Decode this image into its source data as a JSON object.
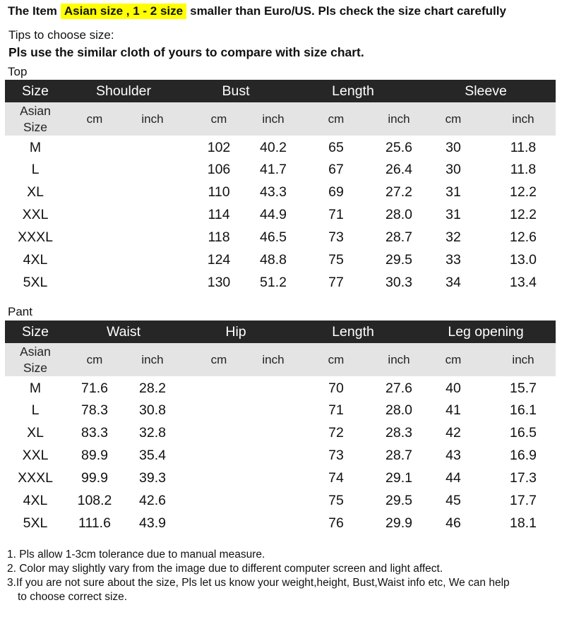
{
  "header": {
    "prefix": "The Item",
    "highlight": "Asian size , 1 - 2 size",
    "suffix": "smaller than Euro/US. Pls check the size chart carefully"
  },
  "tips": {
    "label": "Tips to choose size:",
    "text": "Pls use the similar cloth of yours to compare with size chart."
  },
  "top": {
    "label": "Top",
    "size_header": "Size",
    "groups": [
      "Shoulder",
      "Bust",
      "Length",
      "Sleeve"
    ],
    "asian_size": [
      "Asian",
      "Size"
    ],
    "unit_cm": "cm",
    "unit_inch": "inch",
    "rows": [
      {
        "size": "M",
        "shoulder_cm": "",
        "shoulder_inch": "",
        "bust_cm": "102",
        "bust_inch": "40.2",
        "length_cm": "65",
        "length_inch": "25.6",
        "sleeve_cm": "30",
        "sleeve_inch": "11.8"
      },
      {
        "size": "L",
        "shoulder_cm": "",
        "shoulder_inch": "",
        "bust_cm": "106",
        "bust_inch": "41.7",
        "length_cm": "67",
        "length_inch": "26.4",
        "sleeve_cm": "30",
        "sleeve_inch": "11.8"
      },
      {
        "size": "XL",
        "shoulder_cm": "",
        "shoulder_inch": "",
        "bust_cm": "110",
        "bust_inch": "43.3",
        "length_cm": "69",
        "length_inch": "27.2",
        "sleeve_cm": "31",
        "sleeve_inch": "12.2"
      },
      {
        "size": "XXL",
        "shoulder_cm": "",
        "shoulder_inch": "",
        "bust_cm": "114",
        "bust_inch": "44.9",
        "length_cm": "71",
        "length_inch": "28.0",
        "sleeve_cm": "31",
        "sleeve_inch": "12.2"
      },
      {
        "size": "XXXL",
        "shoulder_cm": "",
        "shoulder_inch": "",
        "bust_cm": "118",
        "bust_inch": "46.5",
        "length_cm": "73",
        "length_inch": "28.7",
        "sleeve_cm": "32",
        "sleeve_inch": "12.6"
      },
      {
        "size": "4XL",
        "shoulder_cm": "",
        "shoulder_inch": "",
        "bust_cm": "124",
        "bust_inch": "48.8",
        "length_cm": "75",
        "length_inch": "29.5",
        "sleeve_cm": "33",
        "sleeve_inch": "13.0"
      },
      {
        "size": "5XL",
        "shoulder_cm": "",
        "shoulder_inch": "",
        "bust_cm": "130",
        "bust_inch": "51.2",
        "length_cm": "77",
        "length_inch": "30.3",
        "sleeve_cm": "34",
        "sleeve_inch": "13.4"
      }
    ]
  },
  "pant": {
    "label": "Pant",
    "size_header": "Size",
    "groups": [
      "Waist",
      "Hip",
      "Length",
      "Leg opening"
    ],
    "asian_size": [
      "Asian",
      "Size"
    ],
    "unit_cm": "cm",
    "unit_inch": "inch",
    "rows": [
      {
        "size": "M",
        "waist_cm": "71.6",
        "waist_inch": "28.2",
        "hip_cm": "",
        "hip_inch": "",
        "length_cm": "70",
        "length_inch": "27.6",
        "leg_cm": "40",
        "leg_inch": "15.7"
      },
      {
        "size": "L",
        "waist_cm": "78.3",
        "waist_inch": "30.8",
        "hip_cm": "",
        "hip_inch": "",
        "length_cm": "71",
        "length_inch": "28.0",
        "leg_cm": "41",
        "leg_inch": "16.1"
      },
      {
        "size": "XL",
        "waist_cm": "83.3",
        "waist_inch": "32.8",
        "hip_cm": "",
        "hip_inch": "",
        "length_cm": "72",
        "length_inch": "28.3",
        "leg_cm": "42",
        "leg_inch": "16.5"
      },
      {
        "size": "XXL",
        "waist_cm": "89.9",
        "waist_inch": "35.4",
        "hip_cm": "",
        "hip_inch": "",
        "length_cm": "73",
        "length_inch": "28.7",
        "leg_cm": "43",
        "leg_inch": "16.9"
      },
      {
        "size": "XXXL",
        "waist_cm": "99.9",
        "waist_inch": "39.3",
        "hip_cm": "",
        "hip_inch": "",
        "length_cm": "74",
        "length_inch": "29.1",
        "leg_cm": "44",
        "leg_inch": "17.3"
      },
      {
        "size": "4XL",
        "waist_cm": "108.2",
        "waist_inch": "42.6",
        "hip_cm": "",
        "hip_inch": "",
        "length_cm": "75",
        "length_inch": "29.5",
        "leg_cm": "45",
        "leg_inch": "17.7"
      },
      {
        "size": "5XL",
        "waist_cm": "111.6",
        "waist_inch": "43.9",
        "hip_cm": "",
        "hip_inch": "",
        "length_cm": "76",
        "length_inch": "29.9",
        "leg_cm": "46",
        "leg_inch": "18.1"
      }
    ]
  },
  "notes": [
    "1. Pls allow 1-3cm tolerance due to manual measure.",
    "2. Color may slightly vary from the image due to different computer screen and light affect.",
    "3.If you are not sure about the size, Pls let us know your weight,height, Bust,Waist info etc, We can help",
    "to choose correct size."
  ],
  "colors": {
    "highlight": "#ffff00",
    "header_bg": "#262626",
    "subheader_bg": "#e4e4e4"
  }
}
